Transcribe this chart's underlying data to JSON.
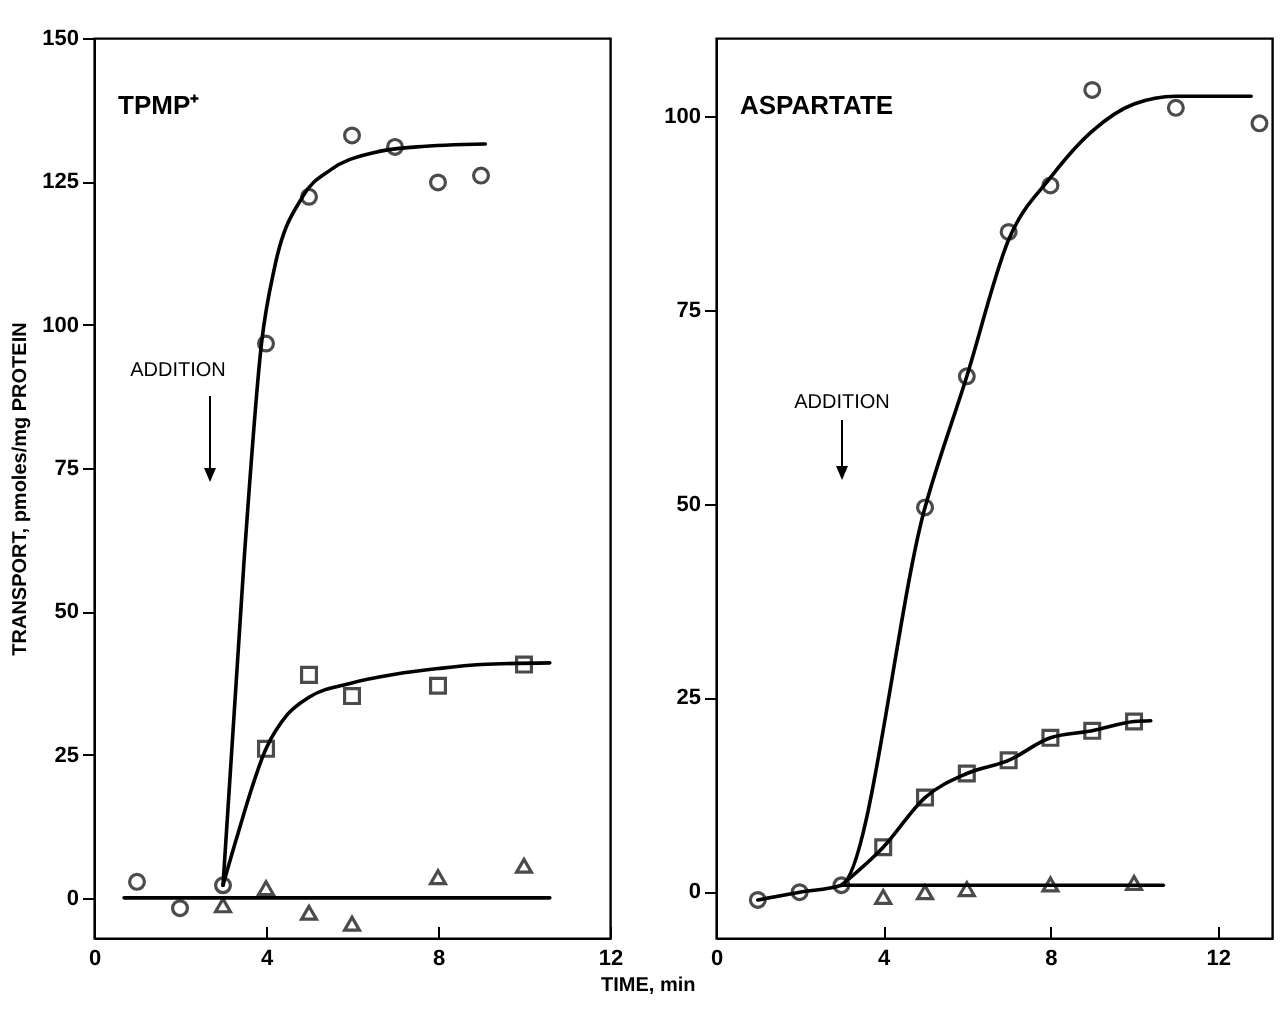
{
  "chart_data": [
    {
      "type": "scatter",
      "title": "TPMP⁺",
      "ylabel": "TRANSPORT, pmoles/mg PROTEIN",
      "xlim": [
        0,
        12
      ],
      "xticks": [
        0,
        4,
        8,
        12
      ],
      "ylim": [
        -7,
        150
      ],
      "yticks": [
        0,
        25,
        50,
        75,
        100,
        125,
        150
      ],
      "annotations": [
        "ADDITION"
      ],
      "series": [
        {
          "type": "scatter",
          "marker": "circle",
          "color": "#000000",
          "x": [
            1,
            2,
            3,
            4,
            5,
            6,
            7,
            8,
            9
          ],
          "values": [
            2.8,
            -1.8,
            2.2,
            96.7,
            122.3,
            133,
            131,
            124.8,
            126
          ]
        },
        {
          "type": "scatter",
          "marker": "square",
          "color": "#000000",
          "x": [
            4,
            5,
            6,
            8,
            10
          ],
          "values": [
            26,
            38.9,
            35.2,
            37,
            40.7
          ]
        },
        {
          "type": "scatter",
          "marker": "triangle",
          "color": "#000000",
          "x": [
            3,
            4,
            5,
            6,
            8,
            10
          ],
          "values": [
            -1.3,
            1.7,
            -2.6,
            -4.5,
            3.6,
            5.6
          ]
        },
        {
          "type": "line",
          "color": "#000000",
          "x": [
            3,
            3.5,
            3.9,
            4.2,
            4.85,
            5.5,
            6.5,
            7.5,
            9.1
          ],
          "values": [
            2.2,
            60,
            97,
            110,
            122.3,
            127,
            130,
            131,
            131.5
          ]
        },
        {
          "type": "line",
          "color": "#000000",
          "x": [
            3,
            3.3,
            4,
            4.5,
            5,
            6,
            7,
            8,
            9,
            10.6
          ],
          "values": [
            2.2,
            10,
            26,
            32,
            35,
            37.5,
            39,
            40,
            40.7,
            41
          ]
        },
        {
          "type": "line",
          "color": "#000000",
          "x": [
            0.7,
            10.6
          ],
          "values": [
            0,
            0
          ]
        }
      ]
    },
    {
      "type": "scatter",
      "title": "ASPARTATE",
      "xlabel": "TIME, min",
      "xlim": [
        0,
        13.3
      ],
      "xticks": [
        0,
        4,
        8,
        12
      ],
      "ylim": [
        -6,
        110
      ],
      "yticks": [
        0,
        25,
        50,
        75,
        100
      ],
      "annotations": [
        "ADDITION"
      ],
      "series": [
        {
          "type": "scatter",
          "marker": "circle",
          "color": "#000000",
          "x": [
            1,
            2,
            3,
            5,
            6,
            7,
            8,
            9,
            11,
            13
          ],
          "values": [
            -1.1,
            -0.1,
            0.8,
            49.5,
            66.4,
            85,
            91,
            103.3,
            101,
            99
          ]
        },
        {
          "type": "scatter",
          "marker": "square",
          "color": "#000000",
          "x": [
            4,
            5,
            6,
            7,
            8,
            9,
            10
          ],
          "values": [
            5.7,
            12.1,
            15.2,
            16.9,
            19.8,
            20.7,
            21.9
          ]
        },
        {
          "type": "scatter",
          "marker": "triangle",
          "color": "#000000",
          "x": [
            4,
            5,
            6,
            8,
            10
          ],
          "values": [
            -0.7,
            -0.1,
            0.3,
            0.9,
            1.1
          ]
        },
        {
          "type": "line",
          "color": "#000000",
          "x": [
            1,
            2,
            3,
            5,
            6,
            7,
            8,
            9,
            10,
            11,
            12.8
          ],
          "values": [
            -1.1,
            -0.1,
            0.8,
            49.5,
            66.4,
            84,
            92,
            98,
            101.5,
            102.5,
            102.5
          ]
        },
        {
          "type": "line",
          "color": "#000000",
          "x": [
            3,
            4,
            5,
            6,
            7,
            8,
            9,
            10,
            10.4
          ],
          "values": [
            0.8,
            5.7,
            12.1,
            15.2,
            16.9,
            19.8,
            20.7,
            21.9,
            22
          ]
        },
        {
          "type": "line",
          "color": "#000000",
          "x": [
            3,
            10.7
          ],
          "values": [
            0.8,
            0.8
          ]
        }
      ]
    }
  ]
}
